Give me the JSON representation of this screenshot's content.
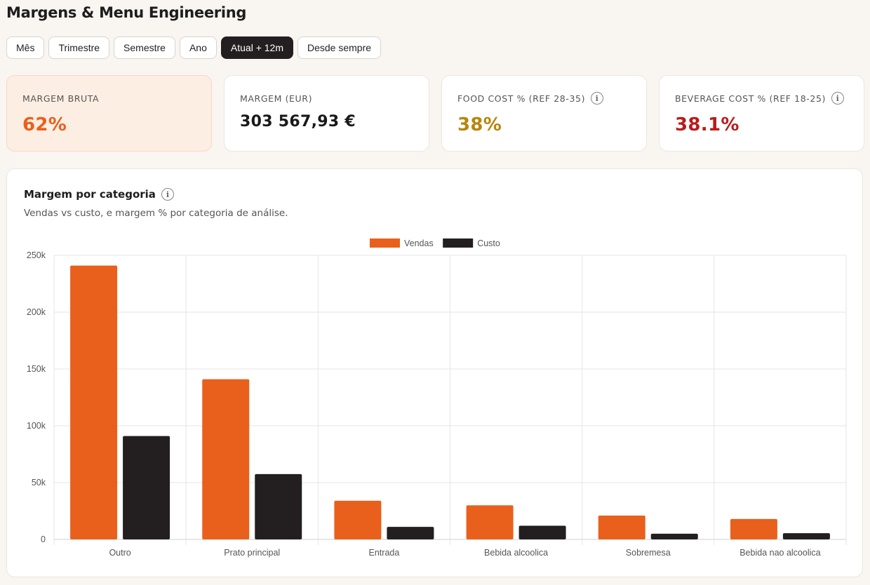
{
  "page": {
    "title": "Margens & Menu Engineering"
  },
  "periods": [
    {
      "label": "Mês",
      "active": false
    },
    {
      "label": "Trimestre",
      "active": false
    },
    {
      "label": "Semestre",
      "active": false
    },
    {
      "label": "Ano",
      "active": false
    },
    {
      "label": "Atual + 12m",
      "active": true
    },
    {
      "label": "Desde sempre",
      "active": false
    }
  ],
  "kpis": {
    "gross_margin": {
      "label": "MARGEM BRUTA",
      "value": "62%",
      "color": "#e8601c"
    },
    "margin_eur": {
      "label": "MARGEM (EUR)",
      "value": "303 567,93 €",
      "color": "#1a1a1a"
    },
    "food_cost": {
      "label": "FOOD COST % (REF 28-35)",
      "value": "38%",
      "color": "#b8860b",
      "info_icon": "info-icon"
    },
    "beverage_cost": {
      "label": "BEVERAGE COST % (REF 18-25)",
      "value": "38.1%",
      "color": "#b91c1c",
      "info_icon": "info-icon"
    }
  },
  "chart_card": {
    "title": "Margem por categoria",
    "subtitle": "Vendas vs custo, e margem % por categoria de análise."
  },
  "chart_data": {
    "type": "bar",
    "categories": [
      "Outro",
      "Prato principal",
      "Entrada",
      "Bebida alcoolica",
      "Sobremesa",
      "Bebida nao alcoolica"
    ],
    "series": [
      {
        "name": "Vendas",
        "color": "#e8601c",
        "values": [
          241000,
          141000,
          34000,
          30000,
          21000,
          18000
        ]
      },
      {
        "name": "Custo",
        "color": "#231f20",
        "values": [
          91000,
          57500,
          11000,
          12000,
          5000,
          5500
        ]
      }
    ],
    "yticks": [
      "0",
      "50k",
      "100k",
      "150k",
      "200k",
      "250k"
    ],
    "ylim": [
      0,
      250000
    ],
    "grid": true,
    "legend_position": "top-center"
  }
}
